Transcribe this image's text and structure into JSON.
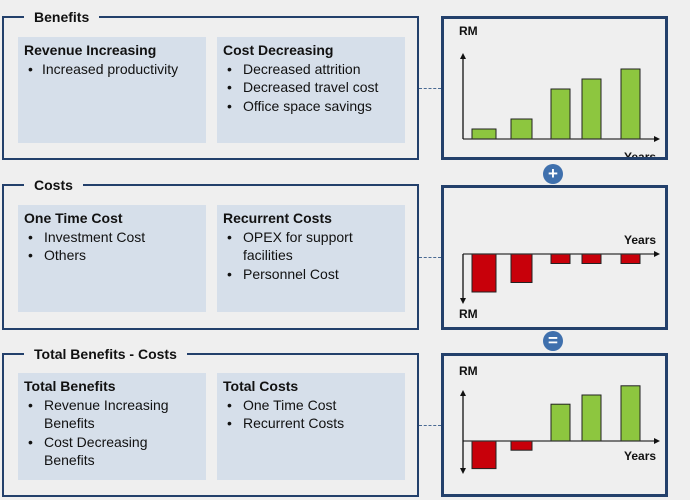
{
  "sections": [
    {
      "title": "Benefits",
      "cards": [
        {
          "heading": "Revenue Increasing",
          "items": [
            "Increased productivity"
          ]
        },
        {
          "heading": "Cost Decreasing",
          "items": [
            "Decreased attrition",
            "Decreased travel cost",
            "Office space savings"
          ]
        }
      ]
    },
    {
      "title": "Costs",
      "cards": [
        {
          "heading": "One Time Cost",
          "items": [
            "Investment Cost",
            "Others"
          ]
        },
        {
          "heading": "Recurrent Costs",
          "items": [
            "OPEX for support facilities",
            "Personnel Cost"
          ]
        }
      ]
    },
    {
      "title": "Total Benefits - Costs",
      "cards": [
        {
          "heading": "Total Benefits",
          "items": [
            "Revenue Increasing Benefits",
            "Cost Decreasing Benefits"
          ]
        },
        {
          "heading": "Total Costs",
          "items": [
            "One Time Cost",
            "Recurrent Costs"
          ]
        }
      ]
    }
  ],
  "operators": {
    "plus": "+",
    "equals": "="
  },
  "colors": {
    "border": "#23406b",
    "card": "#d6dfea",
    "positive": "#8dc63f",
    "negative": "#c8000a",
    "operator": "#3f70ad"
  },
  "chart_data": [
    {
      "type": "bar",
      "title": "Benefits",
      "xlabel": "Years",
      "ylabel": "RM",
      "values": [
        1,
        2,
        5,
        6,
        7
      ],
      "ylim": [
        0,
        8
      ]
    },
    {
      "type": "bar",
      "title": "Costs",
      "xlabel": "Years",
      "ylabel": "RM",
      "values": [
        -4,
        -3,
        -1,
        -1,
        -1
      ],
      "ylim": [
        -5,
        0
      ]
    },
    {
      "type": "bar",
      "title": "Total Benefits - Costs",
      "xlabel": "Years",
      "ylabel": "RM",
      "values": [
        -3,
        -1,
        4,
        5,
        6
      ],
      "ylim": [
        -4,
        7
      ]
    }
  ]
}
